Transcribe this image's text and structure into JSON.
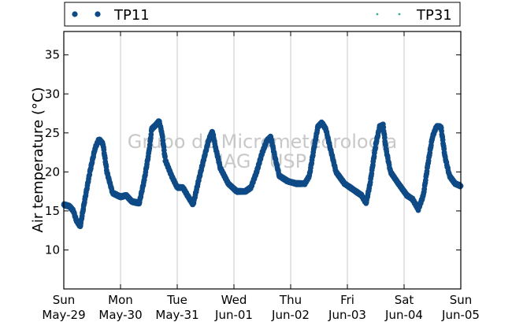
{
  "chart_data": {
    "type": "scatter",
    "ylabel": "Air temperature (°C)",
    "ylim": [
      5,
      38
    ],
    "yticks": [
      10,
      15,
      20,
      25,
      30,
      35
    ],
    "xlim_days": [
      0,
      7
    ],
    "xtick_labels": [
      {
        "day": "Sun",
        "date": "May-29"
      },
      {
        "day": "Mon",
        "date": "May-30"
      },
      {
        "day": "Tue",
        "date": "May-31"
      },
      {
        "day": "Wed",
        "date": "Jun-01"
      },
      {
        "day": "Thu",
        "date": "Jun-02"
      },
      {
        "day": "Fri",
        "date": "Jun-03"
      },
      {
        "day": "Sat",
        "date": "Jun-04"
      },
      {
        "day": "Sun",
        "date": "Jun-05"
      }
    ],
    "grid": "vertical",
    "legend": "top",
    "watermark": [
      "Grupo de Micrometeorologia",
      "IAG / USP"
    ],
    "series": [
      {
        "name": "TP11",
        "color": "#0e4a86",
        "marker": "dot",
        "keypoints": [
          [
            0.0,
            15.8
          ],
          [
            0.1,
            15.6
          ],
          [
            0.17,
            15.0
          ],
          [
            0.22,
            13.8
          ],
          [
            0.29,
            13.0
          ],
          [
            0.36,
            16.0
          ],
          [
            0.46,
            20.0
          ],
          [
            0.55,
            23.0
          ],
          [
            0.62,
            24.2
          ],
          [
            0.69,
            23.6
          ],
          [
            0.76,
            20.0
          ],
          [
            0.86,
            17.3
          ],
          [
            1.0,
            16.8
          ],
          [
            1.1,
            17.0
          ],
          [
            1.2,
            16.2
          ],
          [
            1.33,
            16.0
          ],
          [
            1.42,
            19.0
          ],
          [
            1.5,
            22.5
          ],
          [
            1.55,
            25.5
          ],
          [
            1.62,
            26.0
          ],
          [
            1.68,
            26.5
          ],
          [
            1.73,
            25.0
          ],
          [
            1.79,
            21.5
          ],
          [
            1.9,
            19.5
          ],
          [
            2.0,
            18.0
          ],
          [
            2.1,
            18.0
          ],
          [
            2.18,
            17.0
          ],
          [
            2.28,
            15.8
          ],
          [
            2.38,
            19.0
          ],
          [
            2.48,
            22.0
          ],
          [
            2.56,
            24.2
          ],
          [
            2.62,
            25.2
          ],
          [
            2.68,
            23.0
          ],
          [
            2.76,
            20.5
          ],
          [
            2.9,
            18.5
          ],
          [
            3.05,
            17.5
          ],
          [
            3.2,
            17.5
          ],
          [
            3.3,
            18.0
          ],
          [
            3.4,
            20.0
          ],
          [
            3.5,
            22.5
          ],
          [
            3.58,
            24.0
          ],
          [
            3.65,
            24.5
          ],
          [
            3.72,
            22.0
          ],
          [
            3.8,
            19.5
          ],
          [
            3.95,
            18.8
          ],
          [
            4.1,
            18.5
          ],
          [
            4.25,
            18.5
          ],
          [
            4.33,
            19.5
          ],
          [
            4.41,
            23.0
          ],
          [
            4.48,
            25.8
          ],
          [
            4.55,
            26.3
          ],
          [
            4.62,
            25.5
          ],
          [
            4.7,
            23.0
          ],
          [
            4.8,
            20.0
          ],
          [
            4.95,
            18.5
          ],
          [
            5.05,
            18.0
          ],
          [
            5.15,
            17.5
          ],
          [
            5.25,
            17.0
          ],
          [
            5.33,
            16.0
          ],
          [
            5.4,
            18.5
          ],
          [
            5.5,
            23.5
          ],
          [
            5.57,
            25.8
          ],
          [
            5.63,
            26.0
          ],
          [
            5.68,
            23.0
          ],
          [
            5.76,
            20.0
          ],
          [
            5.9,
            18.5
          ],
          [
            6.05,
            17.0
          ],
          [
            6.15,
            16.5
          ],
          [
            6.25,
            15.2
          ],
          [
            6.34,
            17.0
          ],
          [
            6.42,
            21.0
          ],
          [
            6.5,
            24.5
          ],
          [
            6.57,
            25.8
          ],
          [
            6.65,
            25.8
          ],
          [
            6.72,
            22.0
          ],
          [
            6.8,
            19.5
          ],
          [
            6.9,
            18.5
          ],
          [
            7.0,
            18.2
          ]
        ]
      },
      {
        "name": "TP31",
        "color": "#3aaa9a",
        "marker": "dot",
        "keypoints": []
      }
    ]
  }
}
